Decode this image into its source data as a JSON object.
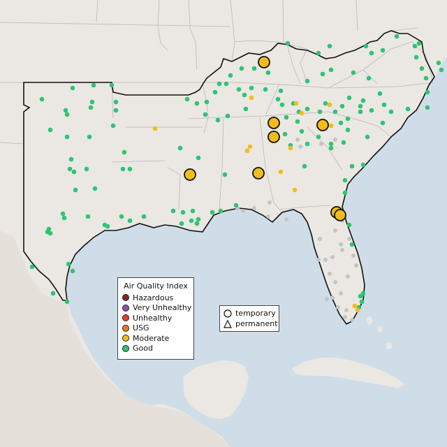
{
  "map": {
    "colors": {
      "water": "#cfdde9",
      "land": "#ebe8e3",
      "land_shade": "#e2ddd5",
      "state_border": "#b8b8b8",
      "region_border": "#111111",
      "Hazardous": "#7e2a2a",
      "Very Unhealthy": "#8f4fb5",
      "Unhealthy": "#e8402b",
      "USG": "#ea7a1c",
      "Moderate": "#f2bd1a",
      "Good": "#2fc475",
      "inactive": "#c4c4c4"
    }
  },
  "aqi_legend": {
    "title": "Air Quality Index",
    "items": [
      {
        "label": "Hazardous",
        "color": "#7e2a2a"
      },
      {
        "label": "Very Unhealthy",
        "color": "#8f4fb5"
      },
      {
        "label": "Unhealthy",
        "color": "#e8402b"
      },
      {
        "label": "USG",
        "color": "#ea7a1c"
      },
      {
        "label": "Moderate",
        "color": "#f2bd1a"
      },
      {
        "label": "Good",
        "color": "#2fc475"
      }
    ]
  },
  "type_legend": {
    "items": [
      {
        "label": "temporary",
        "shape": "circle"
      },
      {
        "label": "permanent",
        "shape": "triangle"
      }
    ]
  }
}
